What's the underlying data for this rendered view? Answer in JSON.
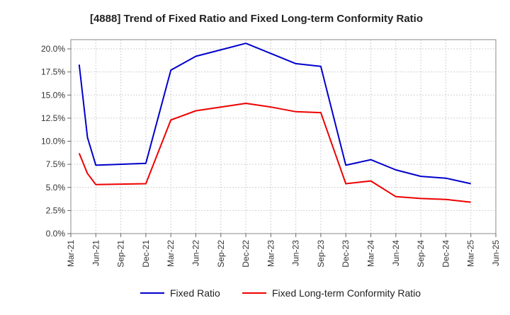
{
  "chart_data": {
    "type": "line",
    "title": "[4888]  Trend of Fixed Ratio and Fixed Long-term Conformity Ratio",
    "xlabel": "",
    "ylabel": "",
    "grid": true,
    "legend_position": "bottom",
    "x_ticks": [
      {
        "label": "Mar-21",
        "month": 0
      },
      {
        "label": "Jun-21",
        "month": 3
      },
      {
        "label": "Sep-21",
        "month": 6
      },
      {
        "label": "Dec-21",
        "month": 9
      },
      {
        "label": "Mar-22",
        "month": 12
      },
      {
        "label": "Jun-22",
        "month": 15
      },
      {
        "label": "Sep-22",
        "month": 18
      },
      {
        "label": "Dec-22",
        "month": 21
      },
      {
        "label": "Mar-23",
        "month": 24
      },
      {
        "label": "Jun-23",
        "month": 27
      },
      {
        "label": "Sep-23",
        "month": 30
      },
      {
        "label": "Dec-23",
        "month": 33
      },
      {
        "label": "Mar-24",
        "month": 36
      },
      {
        "label": "Jun-24",
        "month": 39
      },
      {
        "label": "Sep-24",
        "month": 42
      },
      {
        "label": "Dec-24",
        "month": 45
      },
      {
        "label": "Mar-25",
        "month": 48
      },
      {
        "label": "Jun-25",
        "month": 51
      }
    ],
    "x_range_months": [
      0,
      51
    ],
    "y_ticks": [
      {
        "label": "0.0%",
        "value": 0
      },
      {
        "label": "2.5%",
        "value": 2.5
      },
      {
        "label": "5.0%",
        "value": 5
      },
      {
        "label": "7.5%",
        "value": 7.5
      },
      {
        "label": "10.0%",
        "value": 10
      },
      {
        "label": "12.5%",
        "value": 12.5
      },
      {
        "label": "15.0%",
        "value": 15
      },
      {
        "label": "17.5%",
        "value": 17.5
      },
      {
        "label": "20.0%",
        "value": 20
      }
    ],
    "ylim": [
      0,
      21
    ],
    "series": [
      {
        "name": "Fixed Ratio",
        "color": "#0000cc",
        "points": [
          {
            "month": 1,
            "value": 18.3
          },
          {
            "month": 2,
            "value": 10.4
          },
          {
            "month": 3,
            "value": 7.4
          },
          {
            "month": 9,
            "value": 7.6
          },
          {
            "month": 12,
            "value": 17.7
          },
          {
            "month": 15,
            "value": 19.2
          },
          {
            "month": 18,
            "value": 19.9
          },
          {
            "month": 21,
            "value": 20.6
          },
          {
            "month": 24,
            "value": 19.5
          },
          {
            "month": 27,
            "value": 18.4
          },
          {
            "month": 30,
            "value": 18.1
          },
          {
            "month": 33,
            "value": 7.4
          },
          {
            "month": 36,
            "value": 8.0
          },
          {
            "month": 39,
            "value": 6.9
          },
          {
            "month": 42,
            "value": 6.2
          },
          {
            "month": 45,
            "value": 6.0
          },
          {
            "month": 48,
            "value": 5.4
          }
        ]
      },
      {
        "name": "Fixed Long-term Conformity Ratio",
        "color": "#ee0000",
        "points": [
          {
            "month": 1,
            "value": 8.7
          },
          {
            "month": 2,
            "value": 6.5
          },
          {
            "month": 3,
            "value": 5.3
          },
          {
            "month": 9,
            "value": 5.4
          },
          {
            "month": 12,
            "value": 12.3
          },
          {
            "month": 15,
            "value": 13.3
          },
          {
            "month": 18,
            "value": 13.7
          },
          {
            "month": 21,
            "value": 14.1
          },
          {
            "month": 24,
            "value": 13.7
          },
          {
            "month": 27,
            "value": 13.2
          },
          {
            "month": 30,
            "value": 13.1
          },
          {
            "month": 33,
            "value": 5.4
          },
          {
            "month": 36,
            "value": 5.7
          },
          {
            "month": 39,
            "value": 4.0
          },
          {
            "month": 42,
            "value": 3.8
          },
          {
            "month": 45,
            "value": 3.7
          },
          {
            "month": 48,
            "value": 3.4
          }
        ]
      }
    ]
  }
}
